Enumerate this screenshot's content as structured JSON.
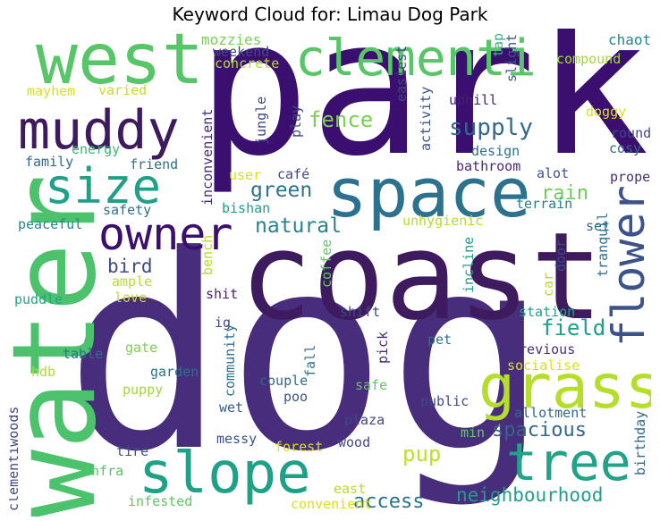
{
  "title": "Keyword Cloud for: Limau Dog Park",
  "words": [
    {
      "text": "dog",
      "color": "#472d7b"
    },
    {
      "text": "park",
      "color": "#3b0f70"
    },
    {
      "text": "coast",
      "color": "#3e1a5e"
    },
    {
      "text": "water",
      "color": "#4cc26c"
    },
    {
      "text": "west",
      "color": "#56c667"
    },
    {
      "text": "space",
      "color": "#2c728e"
    },
    {
      "text": "clementi",
      "color": "#56c667"
    },
    {
      "text": "grass",
      "color": "#b5de2b"
    },
    {
      "text": "muddy",
      "color": "#3e1a5e"
    },
    {
      "text": "slope",
      "color": "#1fa187"
    },
    {
      "text": "tree",
      "color": "#20a386"
    },
    {
      "text": "size",
      "color": "#1fa187"
    },
    {
      "text": "owner",
      "color": "#3b0f70"
    },
    {
      "text": "flower",
      "color": "#3b528b"
    },
    {
      "text": "fence",
      "color": "#7ad151"
    },
    {
      "text": "supply",
      "color": "#31688e"
    },
    {
      "text": "green",
      "color": "#2c728e"
    },
    {
      "text": "natural",
      "color": "#25858e"
    },
    {
      "text": "rain",
      "color": "#6ece58"
    },
    {
      "text": "bird",
      "color": "#3e4989"
    },
    {
      "text": "field",
      "color": "#1f9e89"
    },
    {
      "text": "spacious",
      "color": "#31688e"
    },
    {
      "text": "neighbourhood",
      "color": "#1f9e89"
    },
    {
      "text": "access",
      "color": "#2c728e"
    },
    {
      "text": "pup",
      "color": "#c2df23"
    },
    {
      "text": "mozzies",
      "color": "#7ad151"
    },
    {
      "text": "weekend",
      "color": "#3e4989"
    },
    {
      "text": "concrete",
      "color": "#b5de2b"
    },
    {
      "text": "chaotic",
      "color": "#25858e"
    },
    {
      "text": "compound",
      "color": "#a0da39"
    },
    {
      "text": "tap",
      "color": "#35b779"
    },
    {
      "text": "slight",
      "color": "#3b528b"
    },
    {
      "text": "mayhem",
      "color": "#d8e219"
    },
    {
      "text": "varied",
      "color": "#c2df23"
    },
    {
      "text": "easiest",
      "color": "#3e4989"
    },
    {
      "text": "uphill",
      "color": "#481f70"
    },
    {
      "text": "doggy",
      "color": "#d8e219"
    },
    {
      "text": "round",
      "color": "#3e4989"
    },
    {
      "text": "cosy",
      "color": "#31688e"
    },
    {
      "text": "energy",
      "color": "#35b779"
    },
    {
      "text": "activity",
      "color": "#3b528b"
    },
    {
      "text": "design",
      "color": "#2c728e"
    },
    {
      "text": "play",
      "color": "#3e4989"
    },
    {
      "text": "jungle",
      "color": "#3e4989"
    },
    {
      "text": "family",
      "color": "#31688e"
    },
    {
      "text": "friend",
      "color": "#2c728e"
    },
    {
      "text": "bathroom",
      "color": "#482878"
    },
    {
      "text": "alot",
      "color": "#3b528b"
    },
    {
      "text": "proper",
      "color": "#472d7b"
    },
    {
      "text": "inconvenient",
      "color": "#472d7b"
    },
    {
      "text": "user",
      "color": "#d8e219"
    },
    {
      "text": "café",
      "color": "#3e4989"
    },
    {
      "text": "terrain",
      "color": "#26828e"
    },
    {
      "text": "safety",
      "color": "#2c728e"
    },
    {
      "text": "bishan",
      "color": "#1f9e89"
    },
    {
      "text": "unhygienic",
      "color": "#b5de2b"
    },
    {
      "text": "set",
      "color": "#31688e"
    },
    {
      "text": "peaceful",
      "color": "#25858e"
    },
    {
      "text": "tranquil",
      "color": "#2c728e"
    },
    {
      "text": "door",
      "color": "#3e4989"
    },
    {
      "text": "bench",
      "color": "#b5de2b"
    },
    {
      "text": "coffee",
      "color": "#5ec962"
    },
    {
      "text": "ample",
      "color": "#b5de2b"
    },
    {
      "text": "car",
      "color": "#b5de2b"
    },
    {
      "text": "incline",
      "color": "#1f9e89"
    },
    {
      "text": "love",
      "color": "#c2df23"
    },
    {
      "text": "puddle",
      "color": "#20a486"
    },
    {
      "text": "shit",
      "color": "#481f70"
    },
    {
      "text": "ig",
      "color": "#3e4989"
    },
    {
      "text": "shift",
      "color": "#3e4989"
    },
    {
      "text": "station",
      "color": "#1fa187"
    },
    {
      "text": "gate",
      "color": "#7ad151"
    },
    {
      "text": "community",
      "color": "#2c728e"
    },
    {
      "text": "pick",
      "color": "#482878"
    },
    {
      "text": "previous",
      "color": "#472d7b"
    },
    {
      "text": "pet",
      "color": "#2c728e"
    },
    {
      "text": "table",
      "color": "#2c728e"
    },
    {
      "text": "hdb",
      "color": "#addc30"
    },
    {
      "text": "garden",
      "color": "#2c728e"
    },
    {
      "text": "fall",
      "color": "#2c728e"
    },
    {
      "text": "socialise",
      "color": "#d8e219"
    },
    {
      "text": "puppy",
      "color": "#a0da39"
    },
    {
      "text": "couple",
      "color": "#31688e"
    },
    {
      "text": "safe",
      "color": "#5ec962"
    },
    {
      "text": "poo",
      "color": "#3b528b"
    },
    {
      "text": "public",
      "color": "#3e4989"
    },
    {
      "text": "clementiwoods",
      "color": "#3e4989"
    },
    {
      "text": "wet",
      "color": "#38598c"
    },
    {
      "text": "plaza",
      "color": "#3e4989"
    },
    {
      "text": "allotment",
      "color": "#31688e"
    },
    {
      "text": "birthday",
      "color": "#31688e"
    },
    {
      "text": "messy",
      "color": "#3b528b"
    },
    {
      "text": "min",
      "color": "#5ec962"
    },
    {
      "text": "tire",
      "color": "#3b528b"
    },
    {
      "text": "forest",
      "color": "#d8e219"
    },
    {
      "text": "wood",
      "color": "#3e4989"
    },
    {
      "text": "infra",
      "color": "#56c667"
    },
    {
      "text": "east",
      "color": "#b5de2b"
    },
    {
      "text": "infested",
      "color": "#5ec962"
    },
    {
      "text": "convenient",
      "color": "#d8e219"
    }
  ]
}
